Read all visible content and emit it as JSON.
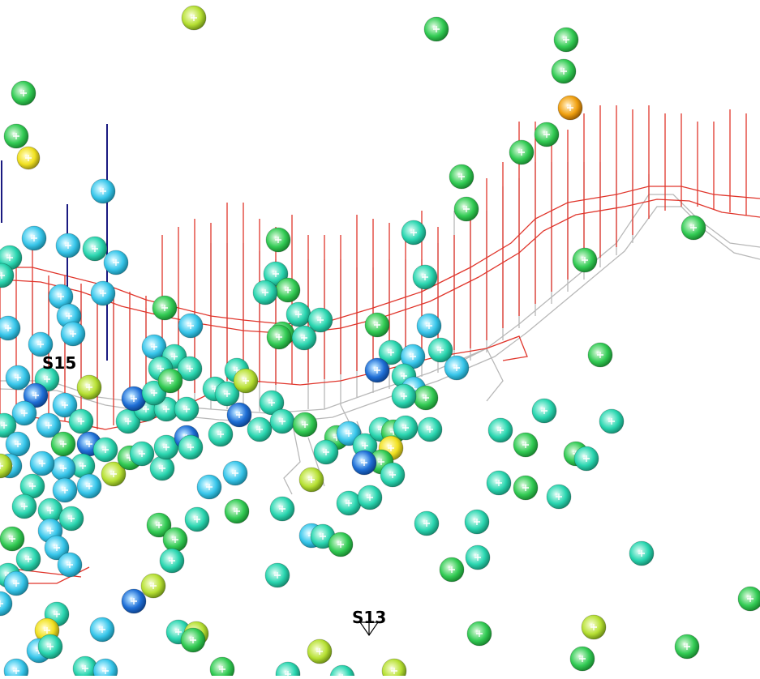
{
  "scene": {
    "labels": [
      {
        "id": "S15",
        "text": "S15"
      },
      {
        "id": "S13",
        "text": "S13"
      }
    ],
    "colors": {
      "background": "#ffffff",
      "upper_workings": "#e0352b",
      "lower_workings": "#b8b8b8",
      "boreholes": "#1a1a80",
      "event_palette": [
        "#1f6fd6",
        "#38c6ea",
        "#2ad6b0",
        "#33cc55",
        "#b6e034",
        "#f0e020",
        "#f0a010"
      ]
    }
  }
}
